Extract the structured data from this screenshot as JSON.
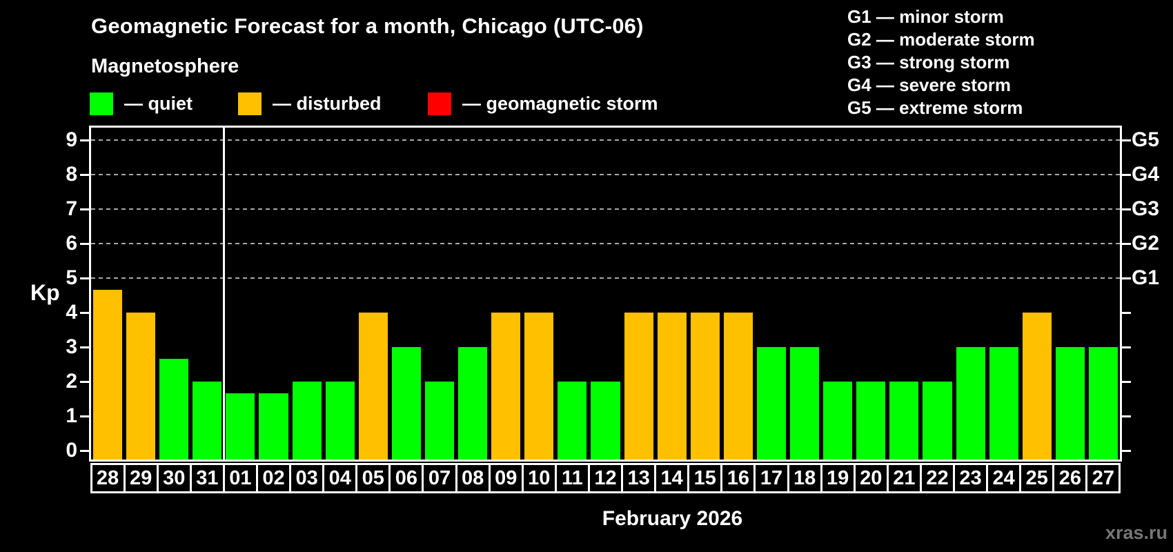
{
  "header": {
    "title": "Geomagnetic Forecast for a month, Chicago (UTC-06)",
    "subtitle": "Magnetosphere"
  },
  "legend": {
    "dash": "—",
    "items": [
      {
        "name": "quiet",
        "color": "#00ff00"
      },
      {
        "name": "disturbed",
        "color": "#ffc000"
      },
      {
        "name": "geomagnetic storm",
        "color": "#ff0000"
      }
    ]
  },
  "storm_scale_legend": [
    {
      "code": "G1",
      "description": "minor storm"
    },
    {
      "code": "G2",
      "description": "moderate storm"
    },
    {
      "code": "G3",
      "description": "strong storm"
    },
    {
      "code": "G4",
      "description": "severe storm"
    },
    {
      "code": "G5",
      "description": "extreme storm"
    }
  ],
  "chart_data": {
    "type": "bar",
    "title": "Geomagnetic Forecast for a month, Chicago (UTC-06)",
    "ylabel": "Kp",
    "xlabel": "February 2026",
    "ylim": [
      0,
      9
    ],
    "yticks": [
      0,
      1,
      2,
      3,
      4,
      5,
      6,
      7,
      8,
      9
    ],
    "gridlines_at": [
      5,
      6,
      7,
      8,
      9
    ],
    "grid_style": "dashed",
    "right_axis_labels": [
      {
        "kp": 5,
        "label": "G1"
      },
      {
        "kp": 6,
        "label": "G2"
      },
      {
        "kp": 7,
        "label": "G3"
      },
      {
        "kp": 8,
        "label": "G4"
      },
      {
        "kp": 9,
        "label": "G5"
      }
    ],
    "month_divider_after_index": 3,
    "categories": [
      "28",
      "29",
      "30",
      "31",
      "01",
      "02",
      "03",
      "04",
      "05",
      "06",
      "07",
      "08",
      "09",
      "10",
      "11",
      "12",
      "13",
      "14",
      "15",
      "16",
      "17",
      "18",
      "19",
      "20",
      "21",
      "22",
      "23",
      "24",
      "25",
      "26",
      "27"
    ],
    "values": [
      4.67,
      4,
      2.67,
      2,
      1.67,
      1.67,
      2,
      2,
      4,
      3,
      2,
      3,
      4,
      4,
      2,
      2,
      4,
      4,
      4,
      4,
      3,
      3,
      2,
      2,
      2,
      2,
      3,
      3,
      4,
      3,
      3
    ],
    "statuses": [
      "disturbed",
      "disturbed",
      "quiet",
      "quiet",
      "quiet",
      "quiet",
      "quiet",
      "quiet",
      "disturbed",
      "quiet",
      "quiet",
      "quiet",
      "disturbed",
      "disturbed",
      "quiet",
      "quiet",
      "disturbed",
      "disturbed",
      "disturbed",
      "disturbed",
      "quiet",
      "quiet",
      "quiet",
      "quiet",
      "quiet",
      "quiet",
      "quiet",
      "quiet",
      "disturbed",
      "quiet",
      "quiet"
    ],
    "colors": {
      "quiet": "#00ff00",
      "disturbed": "#ffc000",
      "geomagnetic storm": "#ff0000"
    }
  },
  "footer": {
    "month_label": "February 2026",
    "watermark": "xras.ru"
  }
}
